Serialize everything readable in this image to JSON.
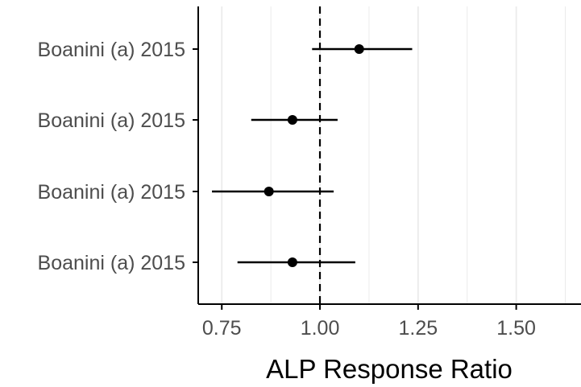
{
  "chart_data": {
    "type": "forest",
    "title": "",
    "xlabel": "ALP Response Ratio",
    "ylabel": "",
    "xlim": [
      0.69,
      1.665
    ],
    "x_ticks": [
      0.75,
      1.0,
      1.25,
      1.5
    ],
    "x_tick_labels": [
      "0.75",
      "1.00",
      "1.25",
      "1.50"
    ],
    "reference_line": 1.0,
    "grid": "vertical minor/major lines only",
    "categories": [
      "Boanini (a) 2015",
      "Boanini (a) 2015",
      "Boanini (a) 2015",
      "Boanini (a) 2015"
    ],
    "estimates": [
      1.1,
      0.93,
      0.87,
      0.93
    ],
    "ci_lower": [
      0.98,
      0.825,
      0.725,
      0.79
    ],
    "ci_upper": [
      1.235,
      1.045,
      1.035,
      1.09
    ],
    "colors": {
      "point": "#000000",
      "grid": "#ebebeb",
      "axis": "#000000",
      "label": "#4d4d4d"
    }
  }
}
